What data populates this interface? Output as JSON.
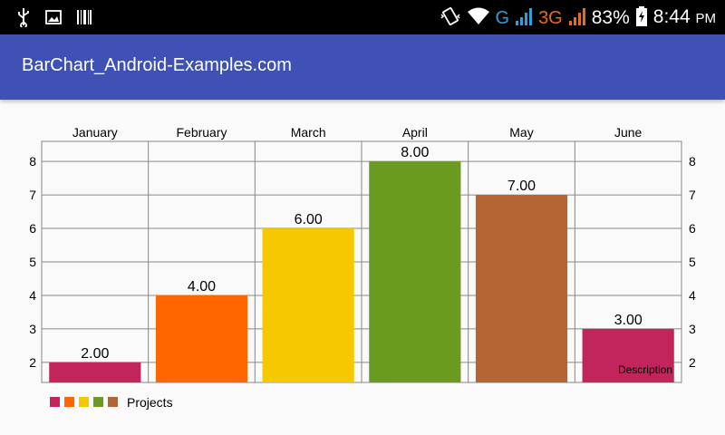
{
  "status_bar": {
    "time": "8:44",
    "ampm": "PM",
    "battery": "83%",
    "network_g": "G",
    "network_3g": "3G",
    "icons": [
      "usb-icon",
      "image-icon",
      "barcode-icon",
      "vibrate-icon",
      "wifi-icon",
      "signal-icon",
      "battery-icon"
    ]
  },
  "app_bar": {
    "title": "BarChart_Android-Examples.com",
    "color": "#3f51b5"
  },
  "chart_data": {
    "type": "bar",
    "categories": [
      "January",
      "February",
      "March",
      "April",
      "May",
      "June"
    ],
    "values": [
      2,
      4,
      6,
      8,
      7,
      3
    ],
    "value_labels": [
      "2.00",
      "4.00",
      "6.00",
      "8.00",
      "7.00",
      "3.00"
    ],
    "colors": [
      "#c2255c",
      "#ff6600",
      "#f5c800",
      "#6a9a1f",
      "#b46533",
      "#c2255c"
    ],
    "y_ticks": [
      "2",
      "3",
      "4",
      "5",
      "6",
      "7",
      "8"
    ],
    "ylim": [
      1.4,
      8.6
    ],
    "grid": true,
    "legend": {
      "label": "Projects",
      "placement": "bottom-left",
      "swatch_colors": [
        "#c2255c",
        "#ff6600",
        "#f5c800",
        "#6a9a1f",
        "#b46533"
      ]
    },
    "description": "Description"
  }
}
